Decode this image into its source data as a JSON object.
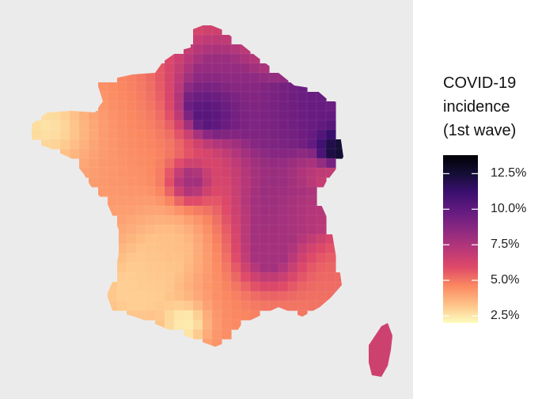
{
  "legend": {
    "title_lines": [
      "COVID-19",
      "incidence",
      "(1st wave)"
    ],
    "ticks": [
      {
        "value": 12.5,
        "label": "12.5%"
      },
      {
        "value": 10.0,
        "label": "10.0%"
      },
      {
        "value": 7.5,
        "label": "7.5%"
      },
      {
        "value": 5.0,
        "label": "5.0%"
      },
      {
        "value": 2.5,
        "label": "2.5%"
      }
    ],
    "range": [
      2.0,
      13.8
    ],
    "colormap": "magma (reversed)",
    "colors": [
      "#fcfdbf",
      "#fec287",
      "#fb8861",
      "#de4968",
      "#b73779",
      "#8c2981",
      "#641a80",
      "#3b0f70",
      "#140e36",
      "#000004"
    ]
  },
  "map": {
    "region": "France (metropolitan departments + Corsica)",
    "background_color": "#ebebeb",
    "incidence_pattern": {
      "north_east_alsace": 13.5,
      "paris_region": 11.0,
      "north_east": 10.0,
      "north": 8.0,
      "centre_east": 7.5,
      "brittany": 3.0,
      "south_west": 3.5,
      "corsica": 6.5
    }
  }
}
